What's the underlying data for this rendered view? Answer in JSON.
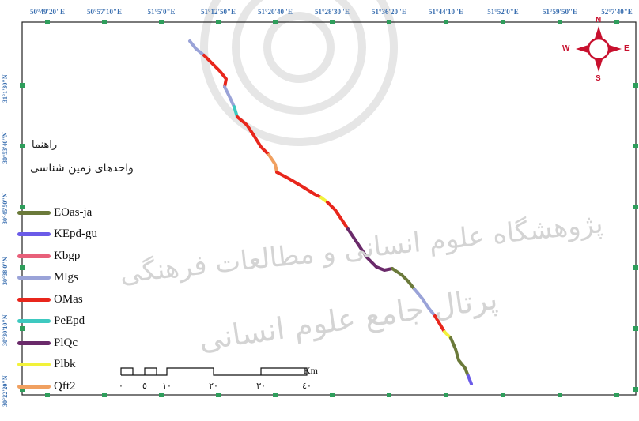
{
  "map": {
    "longitude_labels": [
      "50°49'20\"E",
      "50°57'10\"E",
      "51°5'0\"E",
      "51°12'50\"E",
      "51°20'40\"E",
      "51°28'30\"E",
      "51°36'20\"E",
      "51°44'10\"E",
      "51°52'0\"E",
      "51°59'50\"E",
      "52°7'40\"E"
    ],
    "latitude_labels": [
      "31°1'30\"N",
      "30°53'40\"N",
      "30°45'50\"N",
      "30°38'0\"N",
      "30°30'10\"N",
      "30°22'20\"N"
    ],
    "legend": {
      "title": "راهنما",
      "subtitle": "واحدهای زمین شناسی",
      "items": [
        {
          "label": "EOas-ja",
          "color": "#6b7a3a"
        },
        {
          "label": "KEpd-gu",
          "color": "#6b5be8"
        },
        {
          "label": "Kbgp",
          "color": "#e8607a"
        },
        {
          "label": "Mlgs",
          "color": "#9aa3d8"
        },
        {
          "label": "OMas",
          "color": "#e8261c"
        },
        {
          "label": "PeEpd",
          "color": "#3ec9c0"
        },
        {
          "label": "PlQc",
          "color": "#6a2a6a"
        },
        {
          "label": "Plbk",
          "color": "#f2f23a"
        },
        {
          "label": "Qft2",
          "color": "#f0a060"
        }
      ]
    },
    "scale_bar": {
      "ticks": [
        "٠",
        "٥",
        "١٠",
        "٢٠",
        "٣٠",
        "٤٠"
      ],
      "unit": "Km"
    },
    "compass": {
      "n": "N",
      "e": "E",
      "s": "S",
      "w": "W"
    },
    "watermark": {
      "line1": "پژوهشگاه علوم انسانی و مطالعات فرهنگی",
      "line2": "پرتال جامع علوم انسانی"
    },
    "colors": {
      "frame": "#222222",
      "grid_marker": "#2e9e5b",
      "coord_text": "#3a6fb0",
      "compass": "#c8102e"
    }
  }
}
